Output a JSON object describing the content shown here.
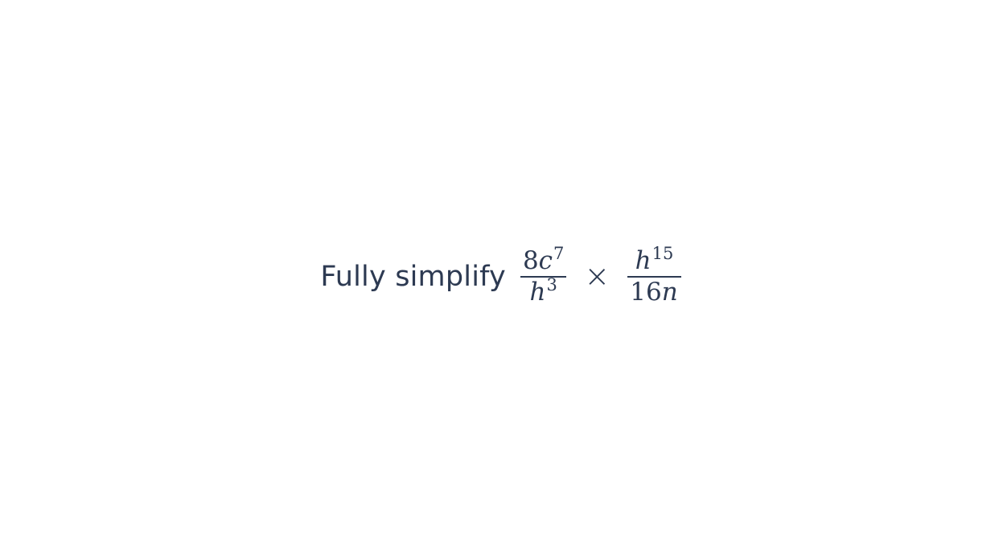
{
  "question": {
    "prompt": "Fully simplify",
    "fraction1": {
      "numerator": {
        "coefficient": "8",
        "variable": "c",
        "exponent": "7"
      },
      "denominator": {
        "coefficient": "",
        "variable": "h",
        "exponent": "3"
      }
    },
    "operator": "×",
    "fraction2": {
      "numerator": {
        "coefficient": "",
        "variable": "h",
        "exponent": "15"
      },
      "denominator": {
        "coefficient": "16",
        "variable": "n",
        "exponent": ""
      }
    },
    "text_color": "#2d3a52",
    "background_color": "#ffffff"
  }
}
